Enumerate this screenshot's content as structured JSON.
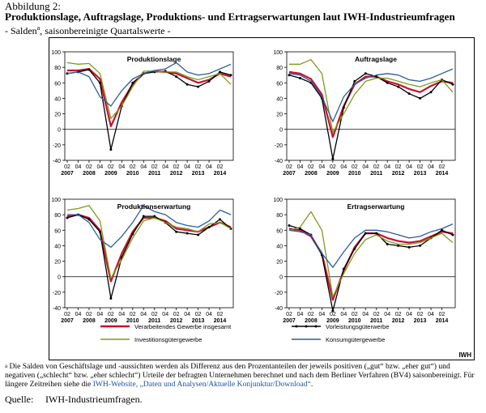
{
  "header": {
    "figure_number": "Abbildung 2:",
    "title": "Produktionslage, Auftragslage, Produktions- und Ertragserwartungen laut IWH-Industrieumfragen",
    "subtitle_prefix": "- Salden",
    "subtitle_marker": "a",
    "subtitle_suffix": ", saisonbereinigte Quartalswerte -"
  },
  "legend": {
    "items": [
      {
        "label": "Verarbeitendes Gewerbe insgesamt",
        "color": "#c8102e"
      },
      {
        "label": "Vorleistungsgüterwerbe",
        "color": "#000000"
      },
      {
        "label": "Investitionsgütergewerbe",
        "color": "#7f9a1c"
      },
      {
        "label": "Konsumgütergewerbe",
        "color": "#2b5d9c"
      }
    ],
    "badge": "IWH"
  },
  "footnote": {
    "marker": "a",
    "text_before_link": "Die Salden von Geschäftslage und -aussichten werden als Differenz aus den Prozentanteilen der jeweils positiven („gut“ bzw. „eher gut“) und negativen („schlecht“ bzw. „eher schlecht“) Urteile der befragten Unternehmen berechnet und nach dem Berliner Verfahren (BV4) saisonbereinigt. Für längere Zeitreihen siehe die ",
    "link_text": "IWH-Website, „Daten und Analysen/Aktuelle Konjunktur/Download“",
    "text_after_link": "."
  },
  "source": {
    "label": "Quelle:",
    "value": "IWH-Industrieumfragen."
  },
  "chart_data": [
    {
      "type": "line",
      "title": "Produktionslage",
      "x": [
        "2007-Q2",
        "2007-Q4",
        "2008-Q2",
        "2008-Q4",
        "2009-Q2",
        "2009-Q4",
        "2010-Q2",
        "2010-Q4",
        "2011-Q2",
        "2011-Q4",
        "2012-Q2",
        "2012-Q4",
        "2013-Q2",
        "2013-Q4",
        "2014-Q2",
        "2014-Q3"
      ],
      "x_tick_labels": [
        "02",
        "04",
        "02",
        "04",
        "02",
        "04",
        "02",
        "04",
        "02",
        "04",
        "02",
        "04",
        "02",
        "04",
        "02"
      ],
      "x_year_labels": [
        "2007",
        "2008",
        "2009",
        "2010",
        "2011",
        "2012",
        "2013",
        "2014"
      ],
      "ylim": [
        -40,
        100
      ],
      "yticks": [
        -40,
        -20,
        0,
        20,
        40,
        60,
        80,
        100
      ],
      "series": [
        {
          "color": "#c8102e",
          "values": [
            76,
            76,
            78,
            65,
            4,
            35,
            58,
            72,
            75,
            74,
            72,
            66,
            60,
            64,
            72,
            68
          ]
        },
        {
          "color": "#000000",
          "values": [
            72,
            74,
            77,
            60,
            -26,
            30,
            60,
            72,
            74,
            75,
            68,
            58,
            55,
            62,
            74,
            70
          ]
        },
        {
          "color": "#7f9a1c",
          "values": [
            86,
            84,
            85,
            72,
            14,
            30,
            55,
            75,
            75,
            74,
            74,
            68,
            64,
            68,
            72,
            58
          ]
        },
        {
          "color": "#2b5d9c",
          "values": [
            72,
            74,
            68,
            42,
            30,
            50,
            65,
            72,
            76,
            78,
            86,
            74,
            70,
            72,
            78,
            84
          ]
        }
      ]
    },
    {
      "type": "line",
      "title": "Auftragslage",
      "x": [
        "2007-Q2",
        "2007-Q4",
        "2008-Q2",
        "2008-Q4",
        "2009-Q2",
        "2009-Q4",
        "2010-Q2",
        "2010-Q4",
        "2011-Q2",
        "2011-Q4",
        "2012-Q2",
        "2012-Q4",
        "2013-Q2",
        "2013-Q4",
        "2014-Q2",
        "2014-Q3"
      ],
      "x_tick_labels": [
        "02",
        "04",
        "02",
        "04",
        "02",
        "04",
        "02",
        "04",
        "02",
        "04",
        "02",
        "04",
        "02",
        "04",
        "02"
      ],
      "x_year_labels": [
        "2007",
        "2008",
        "2009",
        "2010",
        "2011",
        "2012",
        "2013",
        "2014"
      ],
      "ylim": [
        -40,
        100
      ],
      "yticks": [
        -40,
        -20,
        0,
        20,
        40,
        60,
        80,
        100
      ],
      "series": [
        {
          "color": "#c8102e",
          "values": [
            74,
            72,
            65,
            45,
            -10,
            30,
            58,
            68,
            68,
            62,
            58,
            52,
            48,
            56,
            62,
            60
          ]
        },
        {
          "color": "#000000",
          "values": [
            70,
            66,
            60,
            40,
            -38,
            28,
            62,
            72,
            68,
            60,
            55,
            46,
            40,
            48,
            64,
            58
          ]
        },
        {
          "color": "#7f9a1c",
          "values": [
            84,
            84,
            90,
            72,
            -4,
            20,
            45,
            62,
            66,
            66,
            62,
            58,
            55,
            60,
            64,
            48
          ]
        },
        {
          "color": "#2b5d9c",
          "values": [
            72,
            70,
            62,
            42,
            10,
            42,
            58,
            66,
            70,
            72,
            70,
            64,
            62,
            66,
            72,
            78
          ]
        }
      ]
    },
    {
      "type": "line",
      "title": "Produktionserwartung",
      "x": [
        "2007-Q2",
        "2007-Q4",
        "2008-Q2",
        "2008-Q4",
        "2009-Q2",
        "2009-Q4",
        "2010-Q2",
        "2010-Q4",
        "2011-Q2",
        "2011-Q4",
        "2012-Q2",
        "2012-Q4",
        "2013-Q2",
        "2013-Q4",
        "2014-Q2",
        "2014-Q3"
      ],
      "x_tick_labels": [
        "02",
        "04",
        "02",
        "04",
        "02",
        "04",
        "02",
        "04",
        "02",
        "04",
        "02",
        "04",
        "02",
        "04",
        "02"
      ],
      "x_year_labels": [
        "2007",
        "2008",
        "2009",
        "2010",
        "2011",
        "2012",
        "2013",
        "2014"
      ],
      "ylim": [
        -40,
        100
      ],
      "yticks": [
        -40,
        -20,
        0,
        20,
        40,
        60,
        80,
        100
      ],
      "series": [
        {
          "color": "#c8102e",
          "values": [
            78,
            80,
            76,
            60,
            -6,
            30,
            58,
            76,
            76,
            72,
            62,
            60,
            58,
            64,
            70,
            64
          ]
        },
        {
          "color": "#000000",
          "values": [
            76,
            80,
            74,
            58,
            -28,
            25,
            55,
            78,
            78,
            70,
            58,
            56,
            54,
            64,
            74,
            62
          ]
        },
        {
          "color": "#7f9a1c",
          "values": [
            86,
            88,
            92,
            72,
            -2,
            22,
            50,
            72,
            76,
            70,
            64,
            62,
            58,
            68,
            70,
            62
          ]
        },
        {
          "color": "#2b5d9c",
          "values": [
            80,
            80,
            70,
            48,
            38,
            52,
            70,
            92,
            84,
            80,
            70,
            66,
            64,
            72,
            86,
            80
          ]
        }
      ]
    },
    {
      "type": "line",
      "title": "Ertragserwartung",
      "x": [
        "2007-Q2",
        "2007-Q4",
        "2008-Q2",
        "2008-Q4",
        "2009-Q2",
        "2009-Q4",
        "2010-Q2",
        "2010-Q4",
        "2011-Q2",
        "2011-Q4",
        "2012-Q2",
        "2012-Q4",
        "2013-Q2",
        "2013-Q4",
        "2014-Q2",
        "2014-Q3"
      ],
      "x_tick_labels": [
        "02",
        "04",
        "02",
        "04",
        "02",
        "04",
        "02",
        "04",
        "02",
        "04",
        "02",
        "04",
        "02",
        "04",
        "02"
      ],
      "x_year_labels": [
        "2007",
        "2008",
        "2009",
        "2010",
        "2011",
        "2012",
        "2013",
        "2014"
      ],
      "ylim": [
        -40,
        100
      ],
      "yticks": [
        -40,
        -20,
        0,
        20,
        40,
        60,
        80,
        100
      ],
      "series": [
        {
          "color": "#c8102e",
          "values": [
            62,
            60,
            52,
            30,
            -30,
            8,
            38,
            56,
            56,
            50,
            46,
            44,
            46,
            52,
            58,
            56
          ]
        },
        {
          "color": "#000000",
          "values": [
            66,
            62,
            54,
            28,
            -44,
            10,
            36,
            56,
            56,
            42,
            40,
            38,
            40,
            50,
            60,
            54
          ]
        },
        {
          "color": "#7f9a1c",
          "values": [
            60,
            64,
            84,
            60,
            -26,
            4,
            30,
            48,
            54,
            46,
            42,
            42,
            44,
            50,
            56,
            44
          ]
        },
        {
          "color": "#2b5d9c",
          "values": [
            60,
            58,
            54,
            30,
            12,
            32,
            50,
            60,
            60,
            58,
            54,
            50,
            52,
            58,
            62,
            68
          ]
        }
      ]
    }
  ]
}
